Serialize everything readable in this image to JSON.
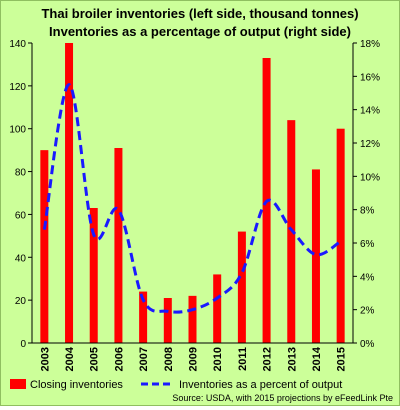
{
  "chart_data": {
    "type": "bar",
    "title_line1": "Thai broiler inventories (left side, thousand tonnes)",
    "title_line2": "Inventories as a percentage of output (right side)",
    "categories": [
      "2003",
      "2004",
      "2005",
      "2006",
      "2007",
      "2008",
      "2009",
      "2010",
      "2011",
      "2012",
      "2013",
      "2014",
      "2015"
    ],
    "series": [
      {
        "name": "Closing inventories",
        "type": "bar",
        "axis": "left",
        "color": "#ff0000",
        "values": [
          90,
          140,
          63,
          91,
          24,
          21,
          22,
          32,
          52,
          133,
          104,
          81,
          100
        ]
      },
      {
        "name": "Inventories as a percent of output",
        "type": "line",
        "axis": "right",
        "color": "#1a1aff",
        "style": "dashed",
        "values": [
          6.8,
          15.5,
          6.5,
          8.0,
          2.6,
          1.9,
          2.0,
          2.7,
          4.2,
          8.5,
          6.8,
          5.3,
          6.1
        ]
      }
    ],
    "left_axis": {
      "min": 0,
      "max": 140,
      "step": 20,
      "ticks": [
        "0",
        "20",
        "40",
        "60",
        "80",
        "100",
        "120",
        "140"
      ]
    },
    "right_axis": {
      "min": 0,
      "max": 18,
      "step": 2,
      "ticks": [
        "0%",
        "2%",
        "4%",
        "6%",
        "8%",
        "10%",
        "12%",
        "14%",
        "16%",
        "18%"
      ]
    },
    "grid": false,
    "legend_position": "bottom",
    "source": "Source: USDA, with 2015 projections by eFeedLink Pte"
  }
}
